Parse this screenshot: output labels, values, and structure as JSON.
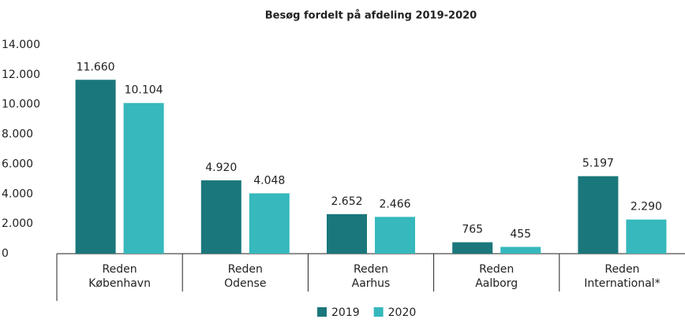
{
  "chart_data": {
    "type": "bar",
    "title": "Besøg fordelt på afdeling 2019-2020",
    "categories": [
      [
        "Reden",
        "København"
      ],
      [
        "Reden",
        "Odense"
      ],
      [
        "Reden",
        "Aarhus"
      ],
      [
        "Reden",
        "Aalborg"
      ],
      [
        "Reden",
        "International*"
      ]
    ],
    "series": [
      {
        "name": "2019",
        "color": "#1a777b",
        "values": [
          11660,
          4920,
          2652,
          765,
          5197
        ],
        "value_labels": [
          "11.660",
          "4.920",
          "2.652",
          "765",
          "5.197"
        ]
      },
      {
        "name": "2020",
        "color": "#36b8bc",
        "values": [
          10104,
          4048,
          2466,
          455,
          2290
        ],
        "value_labels": [
          "10.104",
          "4.048",
          "2.466",
          "455",
          "2.290"
        ]
      }
    ],
    "ylim": [
      0,
      14000
    ],
    "yticks": [
      0,
      {
        "value": 2000,
        "label": "2.000"
      },
      {
        "value": 4000,
        "label": "4.000"
      },
      {
        "value": 6000,
        "label": "6.000"
      },
      {
        "value": 8000,
        "label": "8.000"
      },
      {
        "value": 10000,
        "label": "10.000"
      },
      {
        "value": 12000,
        "label": "12.000"
      },
      {
        "value": 14000,
        "label": "14.000"
      }
    ],
    "legend": "bottom",
    "grid": false
  }
}
